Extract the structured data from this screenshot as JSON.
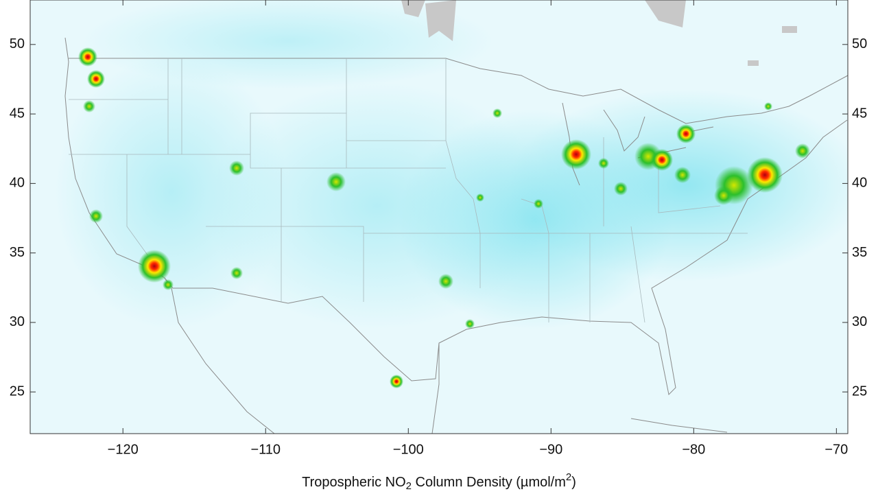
{
  "map": {
    "xlim": [
      -126.5,
      -69.2
    ],
    "ylim": [
      22,
      53.2
    ],
    "xticks": [
      {
        "value": -120,
        "label": "−120"
      },
      {
        "value": -110,
        "label": "−110"
      },
      {
        "value": -100,
        "label": "−100"
      },
      {
        "value": -90,
        "label": "−90"
      },
      {
        "value": -80,
        "label": "−80"
      },
      {
        "value": -70,
        "label": "−70"
      }
    ],
    "yticks": [
      25,
      30,
      35,
      40,
      45,
      50
    ],
    "xlabel": {
      "main": "Tropospheric NO",
      "sub": "2",
      "rest": " Column Density (µmol/m",
      "sup": "2",
      "end": ")"
    }
  }
}
